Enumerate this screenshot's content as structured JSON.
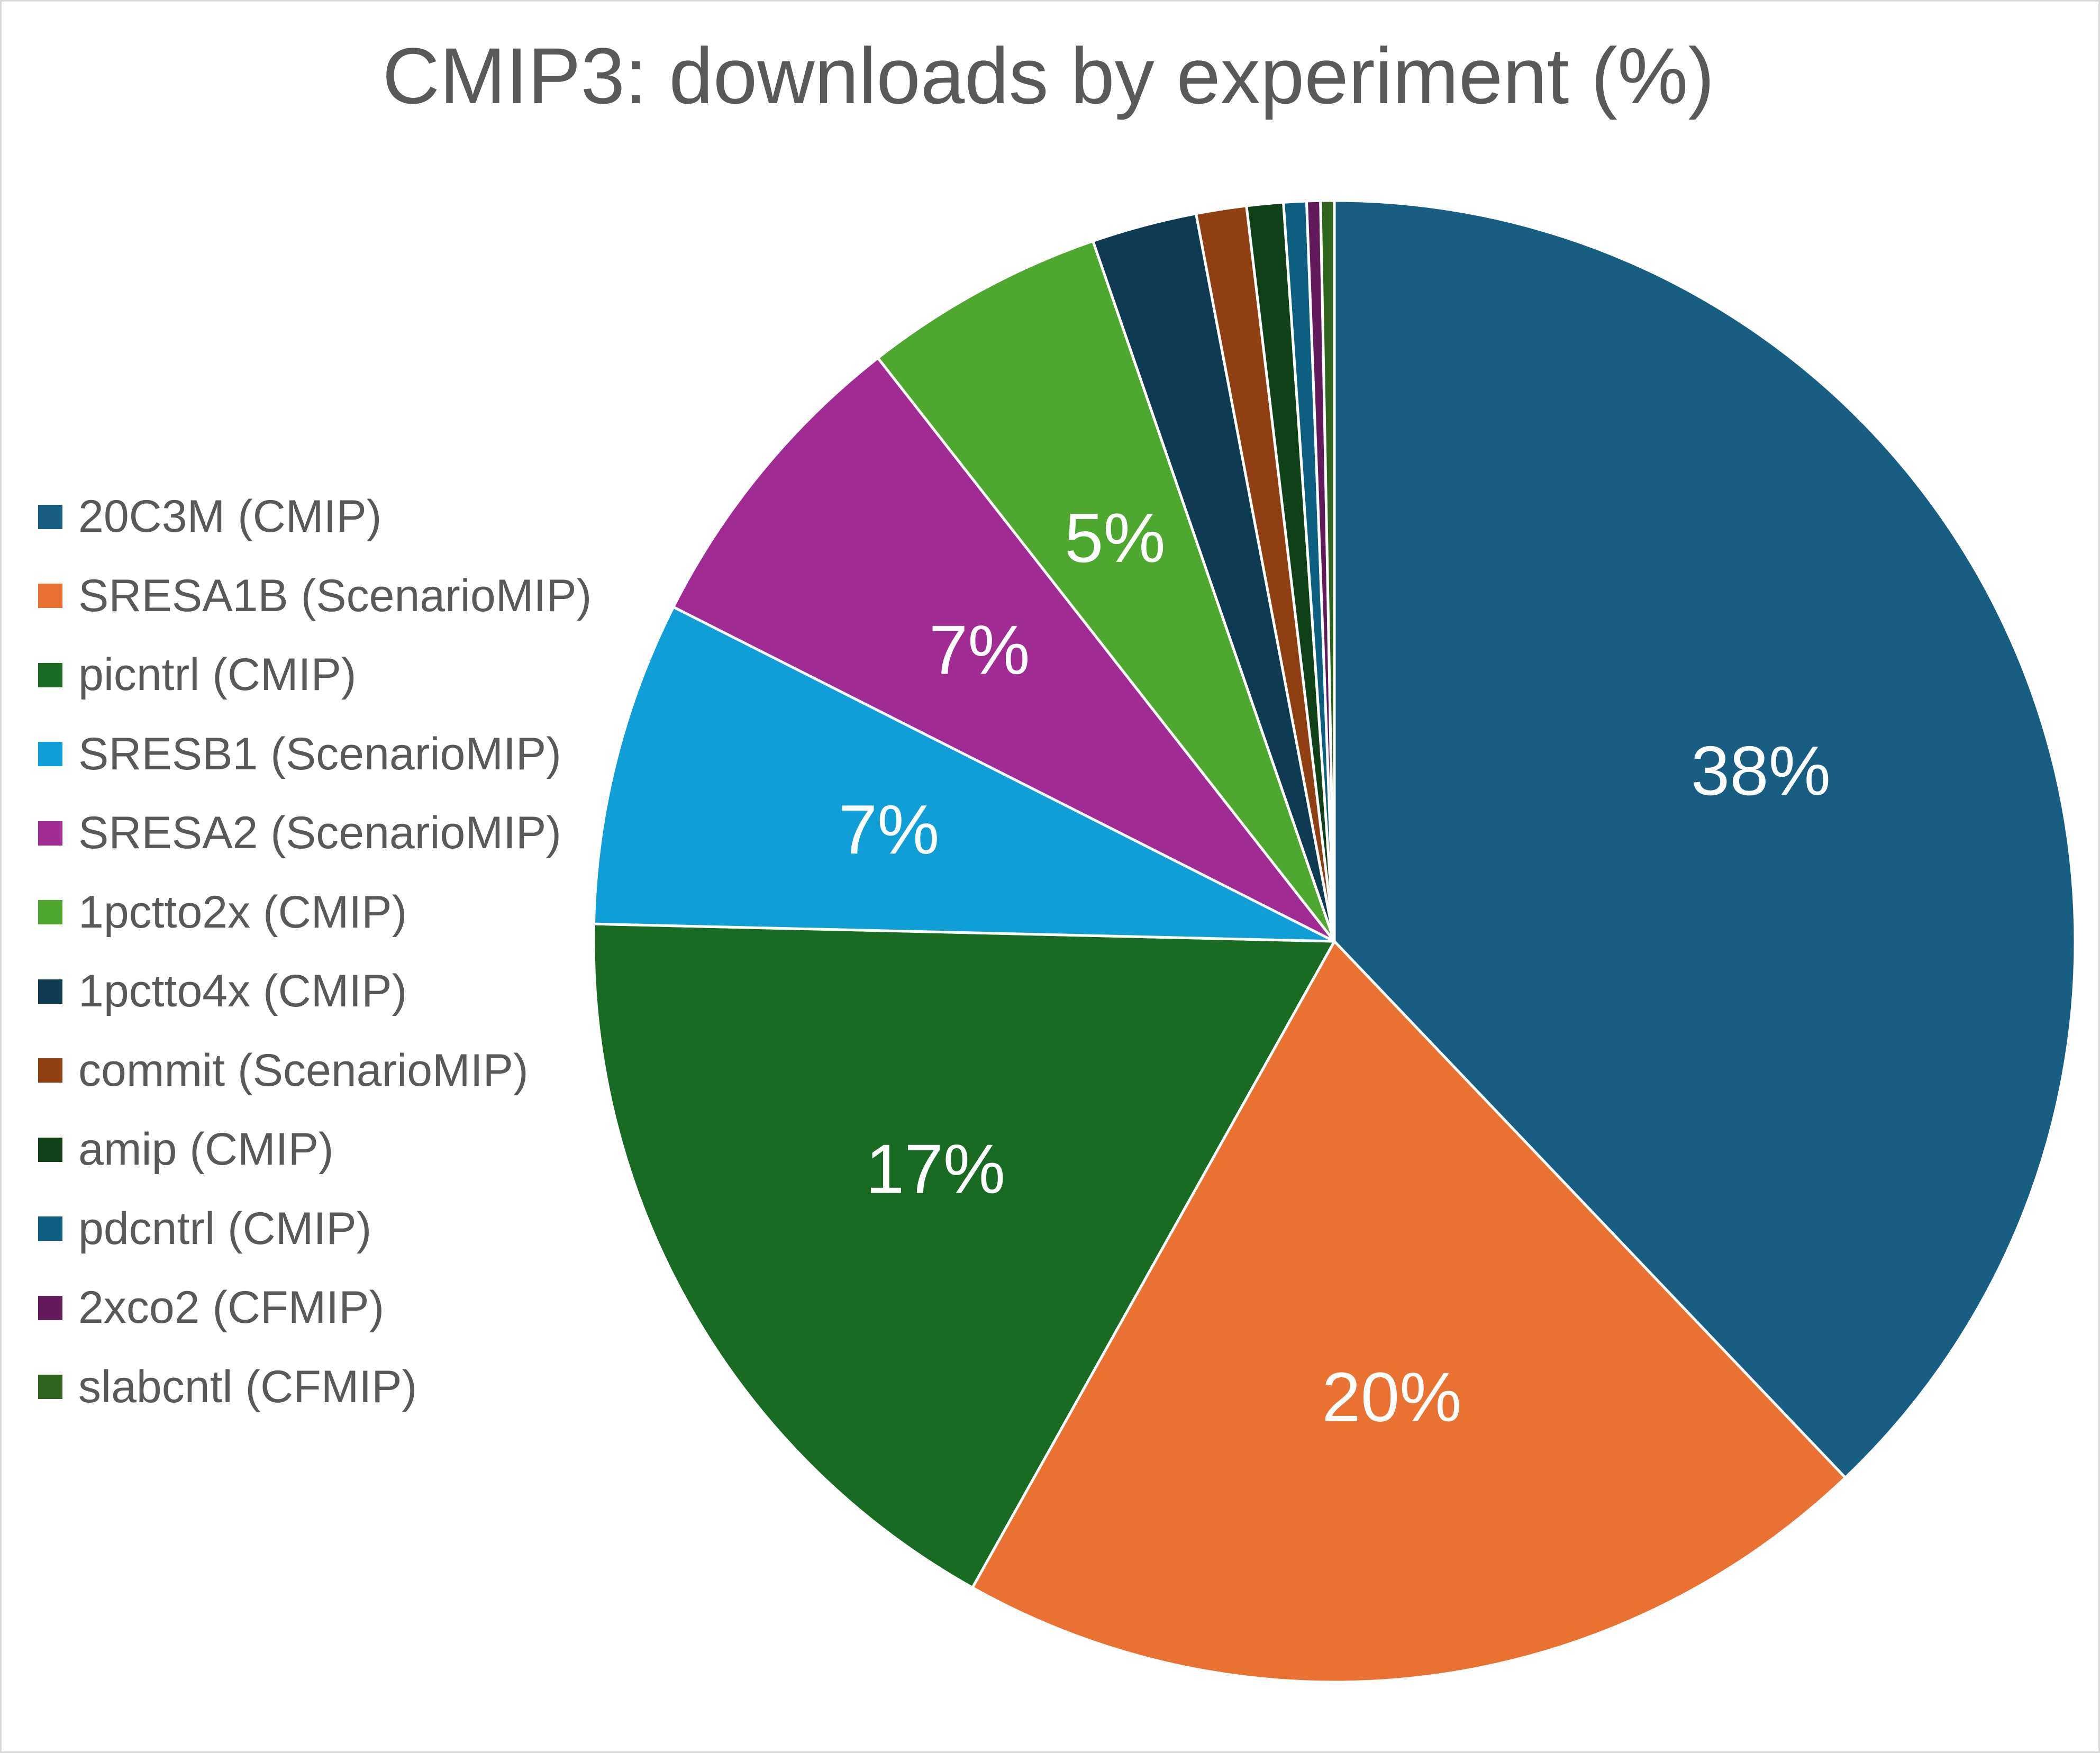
{
  "chart_data": {
    "type": "pie",
    "title": "CMIP3: downloads by experiment (%)",
    "legend_position": "left",
    "start_angle_deg": 0,
    "direction": "clockwise",
    "slices": [
      {
        "name": "20C3M (CMIP)",
        "value": 38.0,
        "label": "38%",
        "color": "#175e82"
      },
      {
        "name": "SRESA1B (ScenarioMIP)",
        "value": 20.3,
        "label": "20%",
        "color": "#e97132"
      },
      {
        "name": "picntrl (CMIP)",
        "value": 17.3,
        "label": "17%",
        "color": "#196b24"
      },
      {
        "name": "SRESB1 (ScenarioMIP)",
        "value": 7.1,
        "label": "7%",
        "color": "#0f9ed5"
      },
      {
        "name": "SRESA2 (ScenarioMIP)",
        "value": 7.0,
        "label": "7%",
        "color": "#a02b93"
      },
      {
        "name": "1pctto2x (CMIP)",
        "value": 5.3,
        "label": "5%",
        "color": "#4ea72e"
      },
      {
        "name": "1pctto4x (CMIP)",
        "value": 2.3,
        "label": "",
        "color": "#0e3a52"
      },
      {
        "name": "commit (ScenarioMIP)",
        "value": 1.1,
        "label": "",
        "color": "#8f3f12"
      },
      {
        "name": "amip (CMIP)",
        "value": 0.8,
        "label": "",
        "color": "#0f4018"
      },
      {
        "name": "pdcntrl (CMIP)",
        "value": 0.5,
        "label": "",
        "color": "#0c5f80"
      },
      {
        "name": "2xco2 (CFMIP)",
        "value": 0.3,
        "label": "",
        "color": "#621a5a"
      },
      {
        "name": "slabcntl (CFMIP)",
        "value": 0.3,
        "label": "",
        "color": "#2e641b"
      }
    ]
  }
}
